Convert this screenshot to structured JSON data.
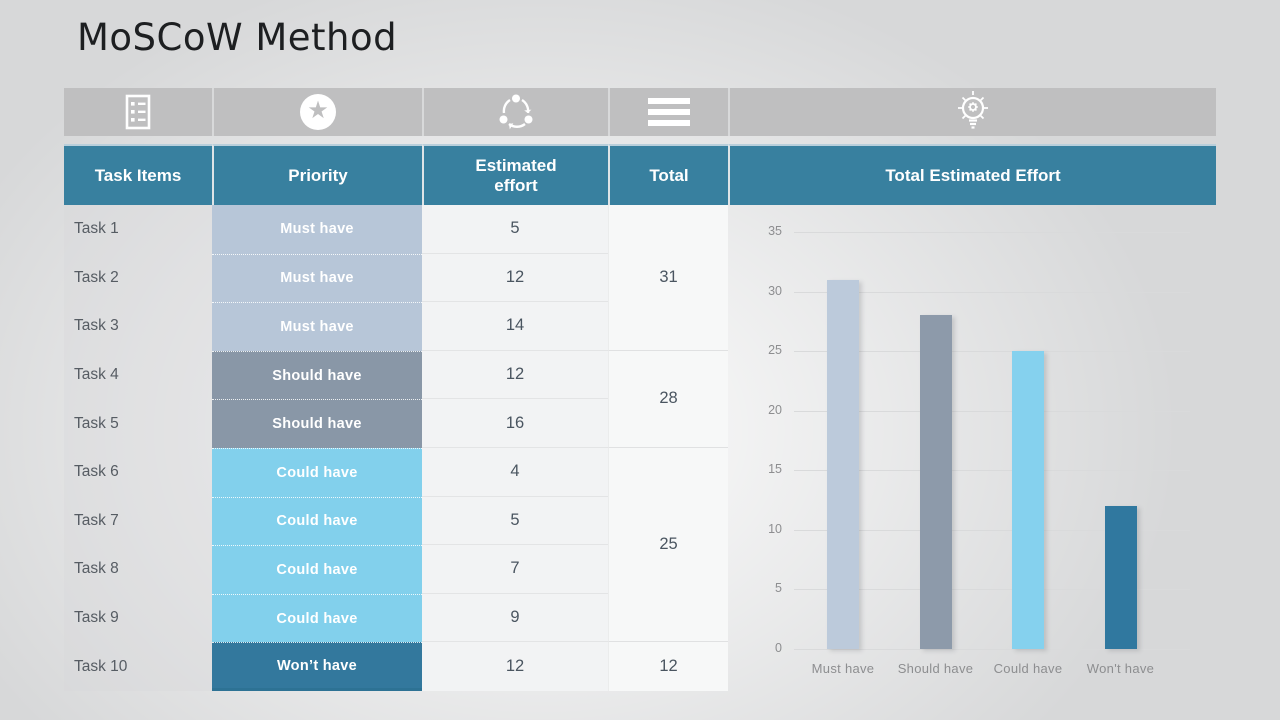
{
  "page": {
    "title": "MoSCoW Method"
  },
  "icon_bar": {
    "icons": [
      "task-list-icon",
      "star-icon",
      "process-cycle-icon",
      "menu-icon",
      "lightbulb-gear-icon"
    ]
  },
  "table": {
    "headers": [
      "Task Items",
      "Priority",
      "Estimated effort",
      "Total",
      "Total Estimated Effort"
    ],
    "rows": [
      {
        "task": "Task 1",
        "priority": "Must have",
        "effort": "5"
      },
      {
        "task": "Task 2",
        "priority": "Must have",
        "effort": "12"
      },
      {
        "task": "Task 3",
        "priority": "Must have",
        "effort": "14"
      },
      {
        "task": "Task 4",
        "priority": "Should have",
        "effort": "12"
      },
      {
        "task": "Task 5",
        "priority": "Should have",
        "effort": "16"
      },
      {
        "task": "Task 6",
        "priority": "Could have",
        "effort": "4"
      },
      {
        "task": "Task 7",
        "priority": "Could have",
        "effort": "5"
      },
      {
        "task": "Task 8",
        "priority": "Could have",
        "effort": "7"
      },
      {
        "task": "Task 9",
        "priority": "Could have",
        "effort": "9"
      },
      {
        "task": "Task 10",
        "priority": "Won’t have",
        "effort": "12"
      }
    ],
    "totals": [
      {
        "value": "31"
      },
      {
        "value": "28"
      },
      {
        "value": "25"
      },
      {
        "value": "12"
      }
    ],
    "priority_colors": {
      "Must have": "#b7c6d8",
      "Should have": "#8997a7",
      "Could have": "#82d0ec",
      "Won’t have": "#33789d"
    },
    "header_color": "#38809f"
  },
  "chart_data": {
    "type": "bar",
    "title": "Total Estimated Effort",
    "categories": [
      "Must have",
      "Should have",
      "Could have",
      "Won't have"
    ],
    "values": [
      31,
      28,
      25,
      12
    ],
    "colors": [
      "#bccadb",
      "#8d9aaa",
      "#85d1ee",
      "#30789f"
    ],
    "xlabel": "",
    "ylabel": "",
    "ylim": [
      0,
      35
    ],
    "ytick_step": 5,
    "grid": true,
    "legend": false
  }
}
